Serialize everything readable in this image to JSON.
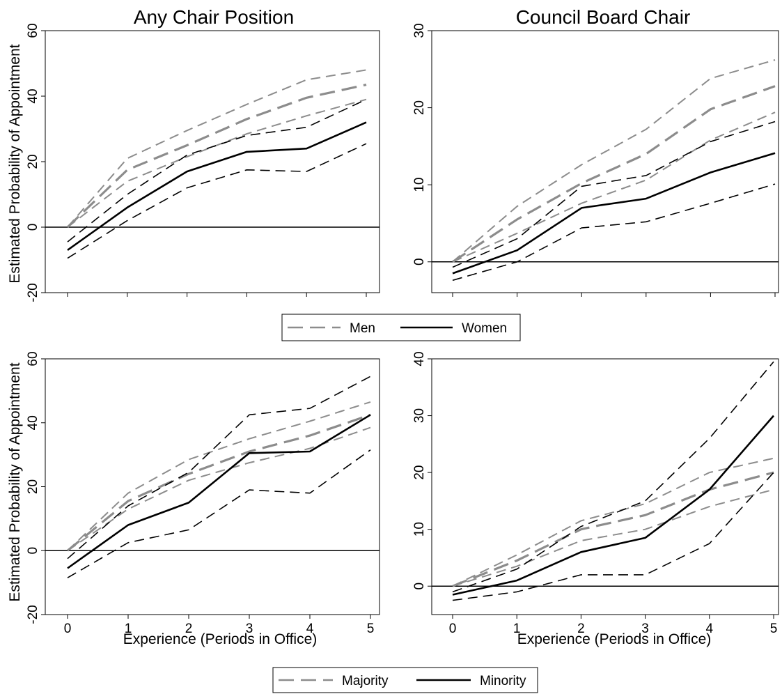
{
  "legend_gender": {
    "men": "Men",
    "women": "Women"
  },
  "legend_race": {
    "majority": "Majority",
    "minority": "Minority"
  },
  "colors": {
    "gray": "#8c8c8c",
    "black": "#000000"
  },
  "chart_data": [
    {
      "id": "tl",
      "type": "line",
      "title": "Any Chair Position",
      "xlabel": "",
      "ylabel": "Estimated Probability of Appointment",
      "x": [
        0,
        1,
        2,
        3,
        4,
        5
      ],
      "xlim": [
        0,
        5
      ],
      "ylim": [
        -20,
        60
      ],
      "yticks": [
        -20,
        0,
        20,
        40,
        60
      ],
      "xtick_labels_shown": false,
      "grid": false,
      "series": [
        {
          "name": "Men",
          "role": "estimate",
          "values": [
            0,
            17.5,
            25,
            33,
            39.5,
            43.5
          ]
        },
        {
          "name": "Men",
          "role": "ci_upper",
          "values": [
            0,
            21,
            29.5,
            37.5,
            45,
            48
          ]
        },
        {
          "name": "Men",
          "role": "ci_lower",
          "values": [
            0,
            14,
            21.5,
            28.5,
            34,
            39
          ]
        },
        {
          "name": "Women",
          "role": "estimate",
          "values": [
            -7,
            6,
            17,
            23,
            24,
            32
          ]
        },
        {
          "name": "Women",
          "role": "ci_upper",
          "values": [
            -4.5,
            10,
            22,
            28,
            30.5,
            39
          ]
        },
        {
          "name": "Women",
          "role": "ci_lower",
          "values": [
            -9.5,
            2,
            12,
            17.5,
            17,
            25.5
          ]
        }
      ]
    },
    {
      "id": "tr",
      "type": "line",
      "title": "Council Board Chair",
      "xlabel": "",
      "ylabel": "",
      "x": [
        0,
        1,
        2,
        3,
        4,
        5
      ],
      "xlim": [
        0,
        5
      ],
      "ylim": [
        -4,
        30
      ],
      "yticks": [
        0,
        10,
        20,
        30
      ],
      "xtick_labels_shown": false,
      "grid": false,
      "series": [
        {
          "name": "Men",
          "role": "estimate",
          "values": [
            0,
            5.5,
            10.2,
            14,
            19.8,
            22.8
          ]
        },
        {
          "name": "Men",
          "role": "ci_upper",
          "values": [
            0,
            7.2,
            12.6,
            17.2,
            23.8,
            26.2
          ]
        },
        {
          "name": "Men",
          "role": "ci_lower",
          "values": [
            0,
            3.7,
            7.6,
            10.6,
            15.8,
            19.4
          ]
        },
        {
          "name": "Women",
          "role": "estimate",
          "values": [
            -1.5,
            1.5,
            7,
            8.2,
            11.6,
            14.1
          ]
        },
        {
          "name": "Women",
          "role": "ci_upper",
          "values": [
            -0.7,
            3,
            9.8,
            11.2,
            15.6,
            18.2
          ]
        },
        {
          "name": "Women",
          "role": "ci_lower",
          "values": [
            -2.4,
            0,
            4.4,
            5.2,
            7.6,
            10.1
          ]
        }
      ]
    },
    {
      "id": "bl",
      "type": "line",
      "title": "",
      "xlabel": "Experience (Periods in Office)",
      "ylabel": "Estimated Probability of Appointment",
      "x": [
        0,
        1,
        2,
        3,
        4,
        5
      ],
      "xlim": [
        0,
        5
      ],
      "ylim": [
        -20,
        60
      ],
      "yticks": [
        -20,
        0,
        20,
        40,
        60
      ],
      "xtick_labels_shown": true,
      "grid": false,
      "series": [
        {
          "name": "Majority",
          "role": "estimate",
          "values": [
            0,
            15.5,
            24,
            31,
            36,
            42.5
          ]
        },
        {
          "name": "Majority",
          "role": "ci_upper",
          "values": [
            0,
            18,
            28.5,
            35,
            40.5,
            46.5
          ]
        },
        {
          "name": "Majority",
          "role": "ci_lower",
          "values": [
            0,
            13,
            22,
            27.5,
            32,
            38.5
          ]
        },
        {
          "name": "Minority",
          "role": "estimate",
          "values": [
            -5.5,
            8,
            15,
            30.5,
            31,
            42.5
          ]
        },
        {
          "name": "Minority",
          "role": "ci_upper",
          "values": [
            -2.5,
            14,
            24.5,
            42.5,
            44.5,
            54.5
          ]
        },
        {
          "name": "Minority",
          "role": "ci_lower",
          "values": [
            -8.5,
            2.5,
            6.5,
            19,
            18,
            31.5
          ]
        }
      ]
    },
    {
      "id": "br",
      "type": "line",
      "title": "",
      "xlabel": "Experience (Periods in Office)",
      "ylabel": "",
      "x": [
        0,
        1,
        2,
        3,
        4,
        5
      ],
      "xlim": [
        0,
        5
      ],
      "ylim": [
        -5,
        40
      ],
      "yticks": [
        0,
        10,
        20,
        30,
        40
      ],
      "xtick_labels_shown": true,
      "grid": false,
      "series": [
        {
          "name": "Majority",
          "role": "estimate",
          "values": [
            0,
            4.5,
            10,
            12.5,
            17,
            20
          ]
        },
        {
          "name": "Majority",
          "role": "ci_upper",
          "values": [
            0,
            5.5,
            11.5,
            14.5,
            20,
            22.5
          ]
        },
        {
          "name": "Majority",
          "role": "ci_lower",
          "values": [
            0,
            3.5,
            8,
            10,
            14,
            17
          ]
        },
        {
          "name": "Minority",
          "role": "estimate",
          "values": [
            -1.5,
            1,
            6,
            8.5,
            17,
            30
          ]
        },
        {
          "name": "Minority",
          "role": "ci_upper",
          "values": [
            -1,
            3,
            10.5,
            15,
            26,
            39.5
          ]
        },
        {
          "name": "Minority",
          "role": "ci_lower",
          "values": [
            -2.5,
            -1,
            2,
            2,
            7.5,
            20
          ]
        }
      ]
    }
  ]
}
